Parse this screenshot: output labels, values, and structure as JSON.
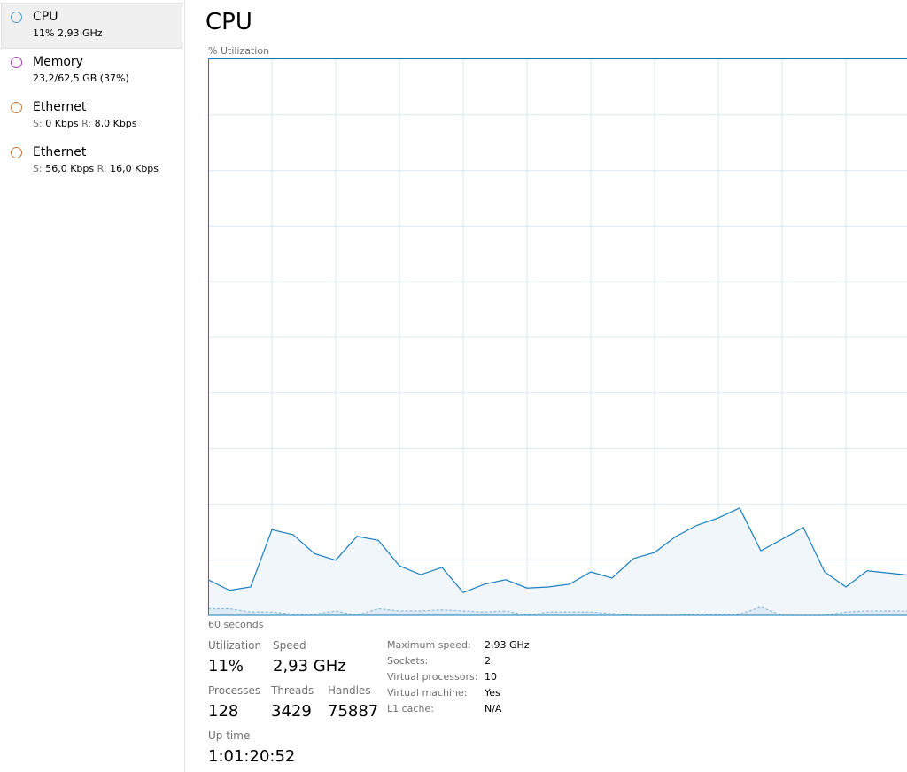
{
  "sidebar": {
    "items": [
      {
        "name": "CPU",
        "detail": [
          "11%",
          "2,93 GHz"
        ]
      },
      {
        "name": "Memory",
        "detail": "23,2/62,5 GB (37%)"
      },
      {
        "name": "Ethernet",
        "send_label": "S:",
        "send": "0 Kbps",
        "recv_label": "R:",
        "recv": "8,0 Kbps"
      },
      {
        "name": "Ethernet",
        "send_label": "S:",
        "send": "56,0 Kbps",
        "recv_label": "R:",
        "recv": "16,0 Kbps"
      }
    ]
  },
  "header": {
    "title": "CPU",
    "graph_label": "% Utilization"
  },
  "graph": {
    "ylim": [
      0,
      100
    ],
    "yticks": [
      0,
      10,
      20,
      30,
      40,
      50,
      60,
      70,
      80,
      90,
      100
    ],
    "x_label": "60 seconds",
    "series": [
      {
        "color": "#1a7fc1",
        "values": [
          6.4,
          4.5,
          5.1,
          15.4,
          14.5,
          11.1,
          9.9,
          14.2,
          13.5,
          8.9,
          7.3,
          8.6,
          4.1,
          5.6,
          6.4,
          4.9,
          5.1,
          5.6,
          7.8,
          6.7,
          10.2,
          11.3,
          14.2,
          16.2,
          17.5,
          19.3,
          11.6,
          13.7,
          15.8,
          7.8,
          5.1,
          8.0,
          7.6,
          7.2
        ]
      },
      {
        "color": "#8fbde0",
        "values": [
          1.2,
          1.2,
          0.6,
          0.6,
          0.2,
          0.2,
          0.8,
          0,
          1.2,
          0.8,
          0.8,
          1.0,
          0.8,
          0.6,
          0.8,
          0,
          0.6,
          0.6,
          0.6,
          0.3,
          0,
          0,
          0,
          0.2,
          0.2,
          0.2,
          1.5,
          0,
          0,
          0,
          0.6,
          0.8,
          0.8,
          0.8
        ]
      }
    ]
  },
  "stats": {
    "utilization": {
      "label": "Utilization",
      "value": "11%"
    },
    "speed": {
      "label": "Speed",
      "value": "2,93 GHz"
    },
    "processes": {
      "label": "Processes",
      "value": 128
    },
    "threads": {
      "label": "Threads",
      "value": 3429
    },
    "handles": {
      "label": "Handles",
      "value": 75887
    },
    "uptime": {
      "label": "Up time",
      "value": "1:01:20:52"
    }
  },
  "details": [
    {
      "key": "Maximum speed:",
      "value": "2,93 GHz"
    },
    {
      "key": "Sockets:",
      "value": 2
    },
    {
      "key": "Virtual processors:",
      "value": 10
    },
    {
      "key": "Virtual machine:",
      "value": "Yes"
    },
    {
      "key": "L1 cache:",
      "value": "N/A"
    }
  ]
}
